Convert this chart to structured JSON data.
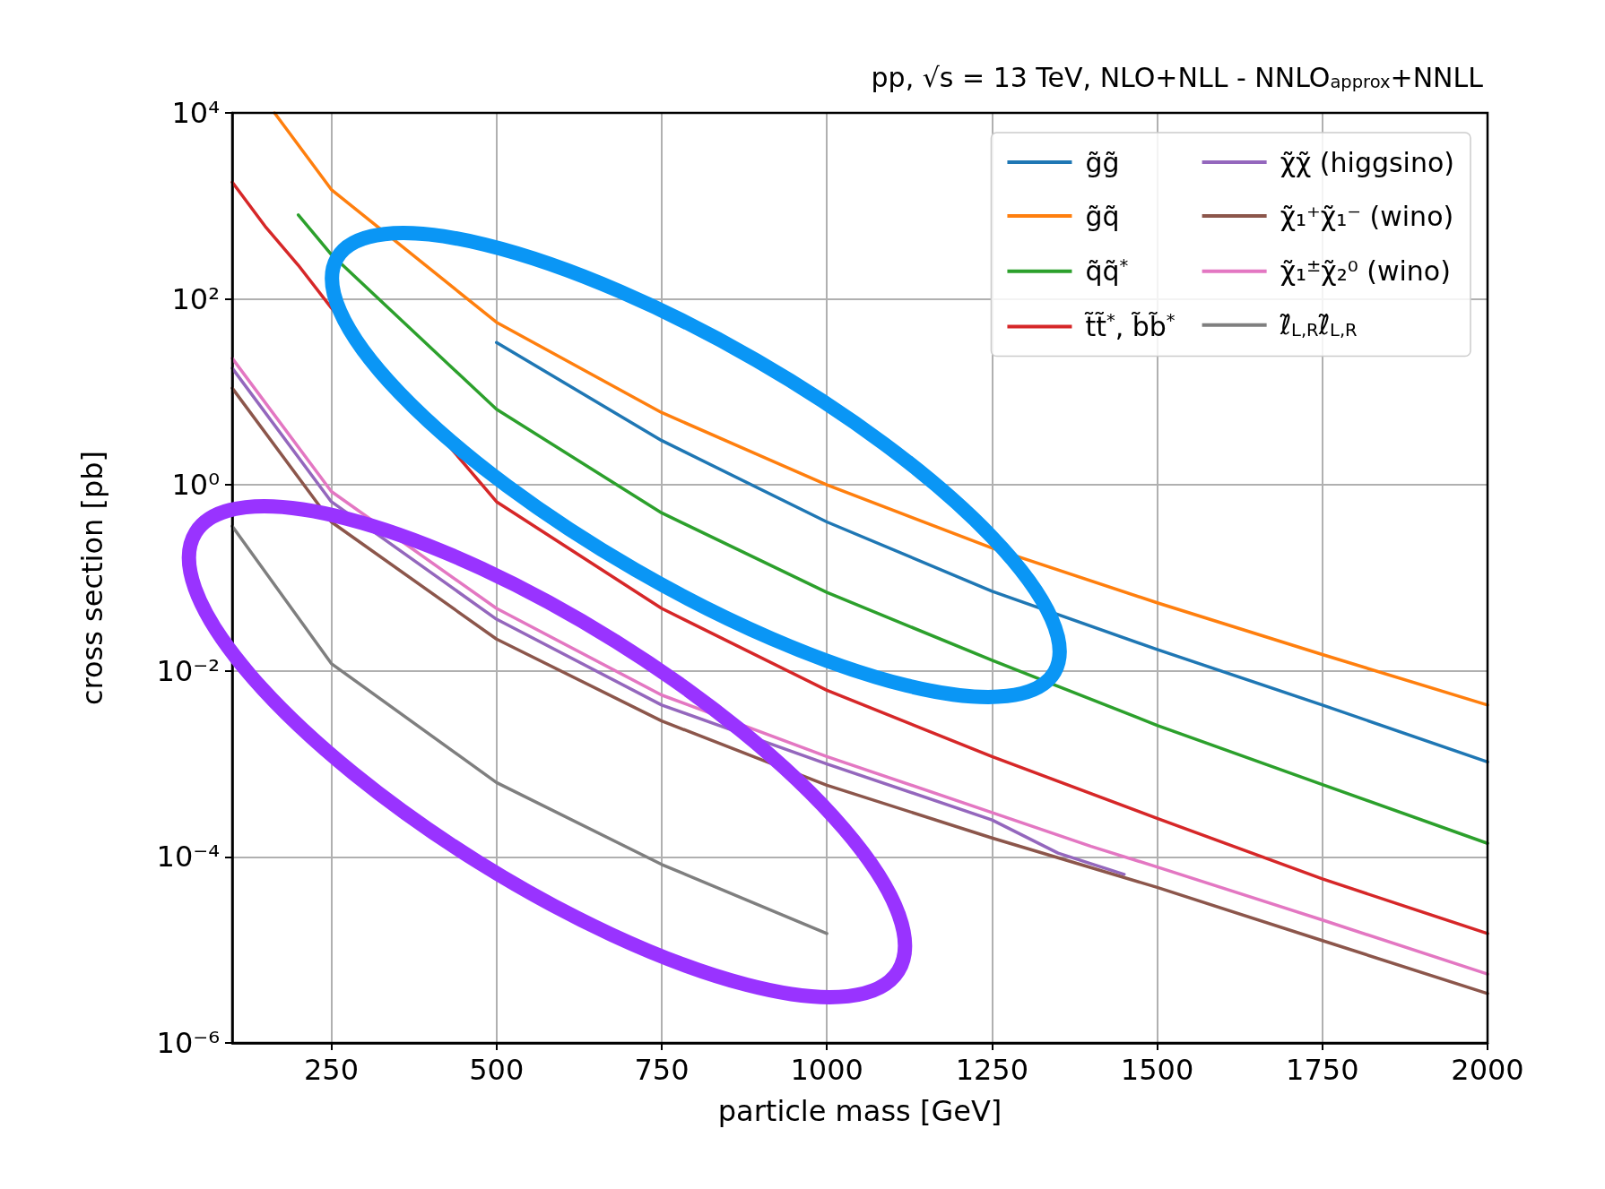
{
  "chart_data": {
    "type": "line",
    "title": "pp, √s = 13 TeV, NLO+NLL - NNLO$_{approx}$+NNLL",
    "xlabel": "particle mass [GeV]",
    "ylabel": "cross section [pb]",
    "log": "y",
    "grid": true,
    "legend": "top right",
    "xlim": [
      100,
      2000
    ],
    "xticks": [
      250,
      500,
      750,
      1000,
      1250,
      1500,
      1750,
      2000
    ],
    "ylim": [
      1e-06,
      10000
    ],
    "yticks": [
      {
        "value": 1e-06,
        "label": "10⁻⁶"
      },
      {
        "value": 0.0001,
        "label": "10⁻⁴"
      },
      {
        "value": 0.01,
        "label": "10⁻²"
      },
      {
        "value": 1,
        "label": "10⁰"
      },
      {
        "value": 100,
        "label": "10²"
      },
      {
        "value": 10000,
        "label": "10⁴"
      }
    ],
    "series": [
      {
        "name": "g̃g̃",
        "color": "#1f77b4",
        "x": [
          500,
          750,
          1000,
          1250,
          1500,
          1750,
          2000
        ],
        "values": [
          34,
          3,
          0.4,
          0.072,
          0.017,
          0.0043,
          0.00105
        ]
      },
      {
        "name": "g̃q̃",
        "color": "#ff7f0e",
        "x": [
          164,
          250,
          500,
          750,
          1000,
          1250,
          1500,
          1750,
          2000
        ],
        "values": [
          10000,
          1500,
          56,
          6,
          1,
          0.21,
          0.054,
          0.015,
          0.0043
        ]
      },
      {
        "name": "q̃q̃$^{*}$",
        "color": "#2ca02c",
        "x": [
          200,
          250,
          500,
          750,
          1000,
          1250,
          1500,
          1750,
          2000
        ],
        "values": [
          800,
          300,
          6.5,
          0.5,
          0.07,
          0.013,
          0.0026,
          0.0006,
          0.00014
        ]
      },
      {
        "name": "t̃t̃$^{*}$, b̃b̃$^{*}$",
        "color": "#d62728",
        "x": [
          100,
          150,
          200,
          250,
          500,
          750,
          1000,
          1250,
          1500,
          1750,
          2000
        ],
        "values": [
          1800,
          600,
          230,
          80,
          0.66,
          0.047,
          0.0062,
          0.0012,
          0.00026,
          5.8e-05,
          1.5e-05
        ]
      },
      {
        "name": "χ̃χ̃ (higgsino)",
        "color": "#9467bd",
        "x": [
          100,
          250,
          500,
          750,
          1000,
          1250,
          1350,
          1450
        ],
        "values": [
          18,
          0.66,
          0.036,
          0.0043,
          0.001,
          0.00025,
          0.00011,
          6.5e-05
        ]
      },
      {
        "name": "χ̃₁⁺χ̃₁⁻ (wino)",
        "color": "#8c564b",
        "x": [
          100,
          250,
          500,
          750,
          1000,
          1250,
          1500,
          1750,
          2000
        ],
        "values": [
          11,
          0.4,
          0.022,
          0.0029,
          0.00059,
          0.00016,
          4.7e-05,
          1.26e-05,
          3.4e-06
        ]
      },
      {
        "name": "χ̃₁$^{±}$χ̃₂⁰ (wino)",
        "color": "#e377c2",
        "x": [
          100,
          250,
          500,
          750,
          1000,
          1250,
          1400,
          1500,
          1750,
          2000
        ],
        "values": [
          23,
          0.85,
          0.047,
          0.0055,
          0.0012,
          0.0003,
          0.00013,
          7.8e-05,
          2.1e-05,
          5.5e-06
        ]
      },
      {
        "name": "ℓ̃$_{L,R}$ℓ̃$_{L,R}$",
        "color": "#7f7f7f",
        "x": [
          100,
          250,
          500,
          750,
          1000
        ],
        "values": [
          0.36,
          0.012,
          0.00063,
          8.3e-05,
          1.5e-05
        ]
      }
    ]
  }
}
